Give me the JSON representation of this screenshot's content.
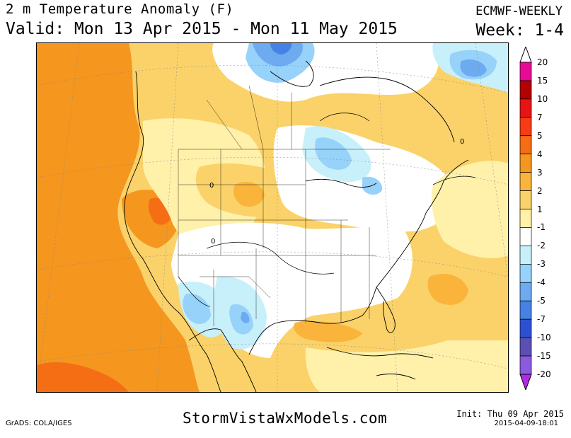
{
  "header": {
    "title": "2 m Temperature Anomaly (F)",
    "valid": "Valid: Mon 13 Apr 2015 - Mon 11 May 2015",
    "model": "ECMWF-WEEKLY",
    "week": "Week: 1-4"
  },
  "colorbar": {
    "levels": [
      {
        "label": "20",
        "color": "#e60a96"
      },
      {
        "label": "15",
        "color": "#b40000"
      },
      {
        "label": "10",
        "color": "#e61414"
      },
      {
        "label": "7",
        "color": "#f53c14"
      },
      {
        "label": "5",
        "color": "#f56e14"
      },
      {
        "label": "4",
        "color": "#f5961e"
      },
      {
        "label": "3",
        "color": "#fab43c"
      },
      {
        "label": "2",
        "color": "#fad269"
      },
      {
        "label": "1",
        "color": "#fff0aa"
      },
      {
        "label": "-1",
        "color": "#ffffff"
      },
      {
        "label": "-2",
        "color": "#c8f0fa"
      },
      {
        "label": "-3",
        "color": "#96d2fa"
      },
      {
        "label": "-4",
        "color": "#6eaaf0"
      },
      {
        "label": "-5",
        "color": "#4682e6"
      },
      {
        "label": "-7",
        "color": "#2d50d2"
      },
      {
        "label": "-10",
        "color": "#5a50b4"
      },
      {
        "label": "-15",
        "color": "#8c5adc"
      },
      {
        "label": "-20",
        "color": "#a01ee6"
      }
    ],
    "bottom_label": "-20",
    "bottom_color": "#b428e6"
  },
  "map": {
    "contour_label": "0"
  },
  "footer": {
    "website": "StormVistaWxModels.com",
    "credit": "GrADS: COLA/IGES",
    "init": "Init: Thu 09 Apr 2015",
    "timestamp": "2015-04-09-18:01"
  }
}
